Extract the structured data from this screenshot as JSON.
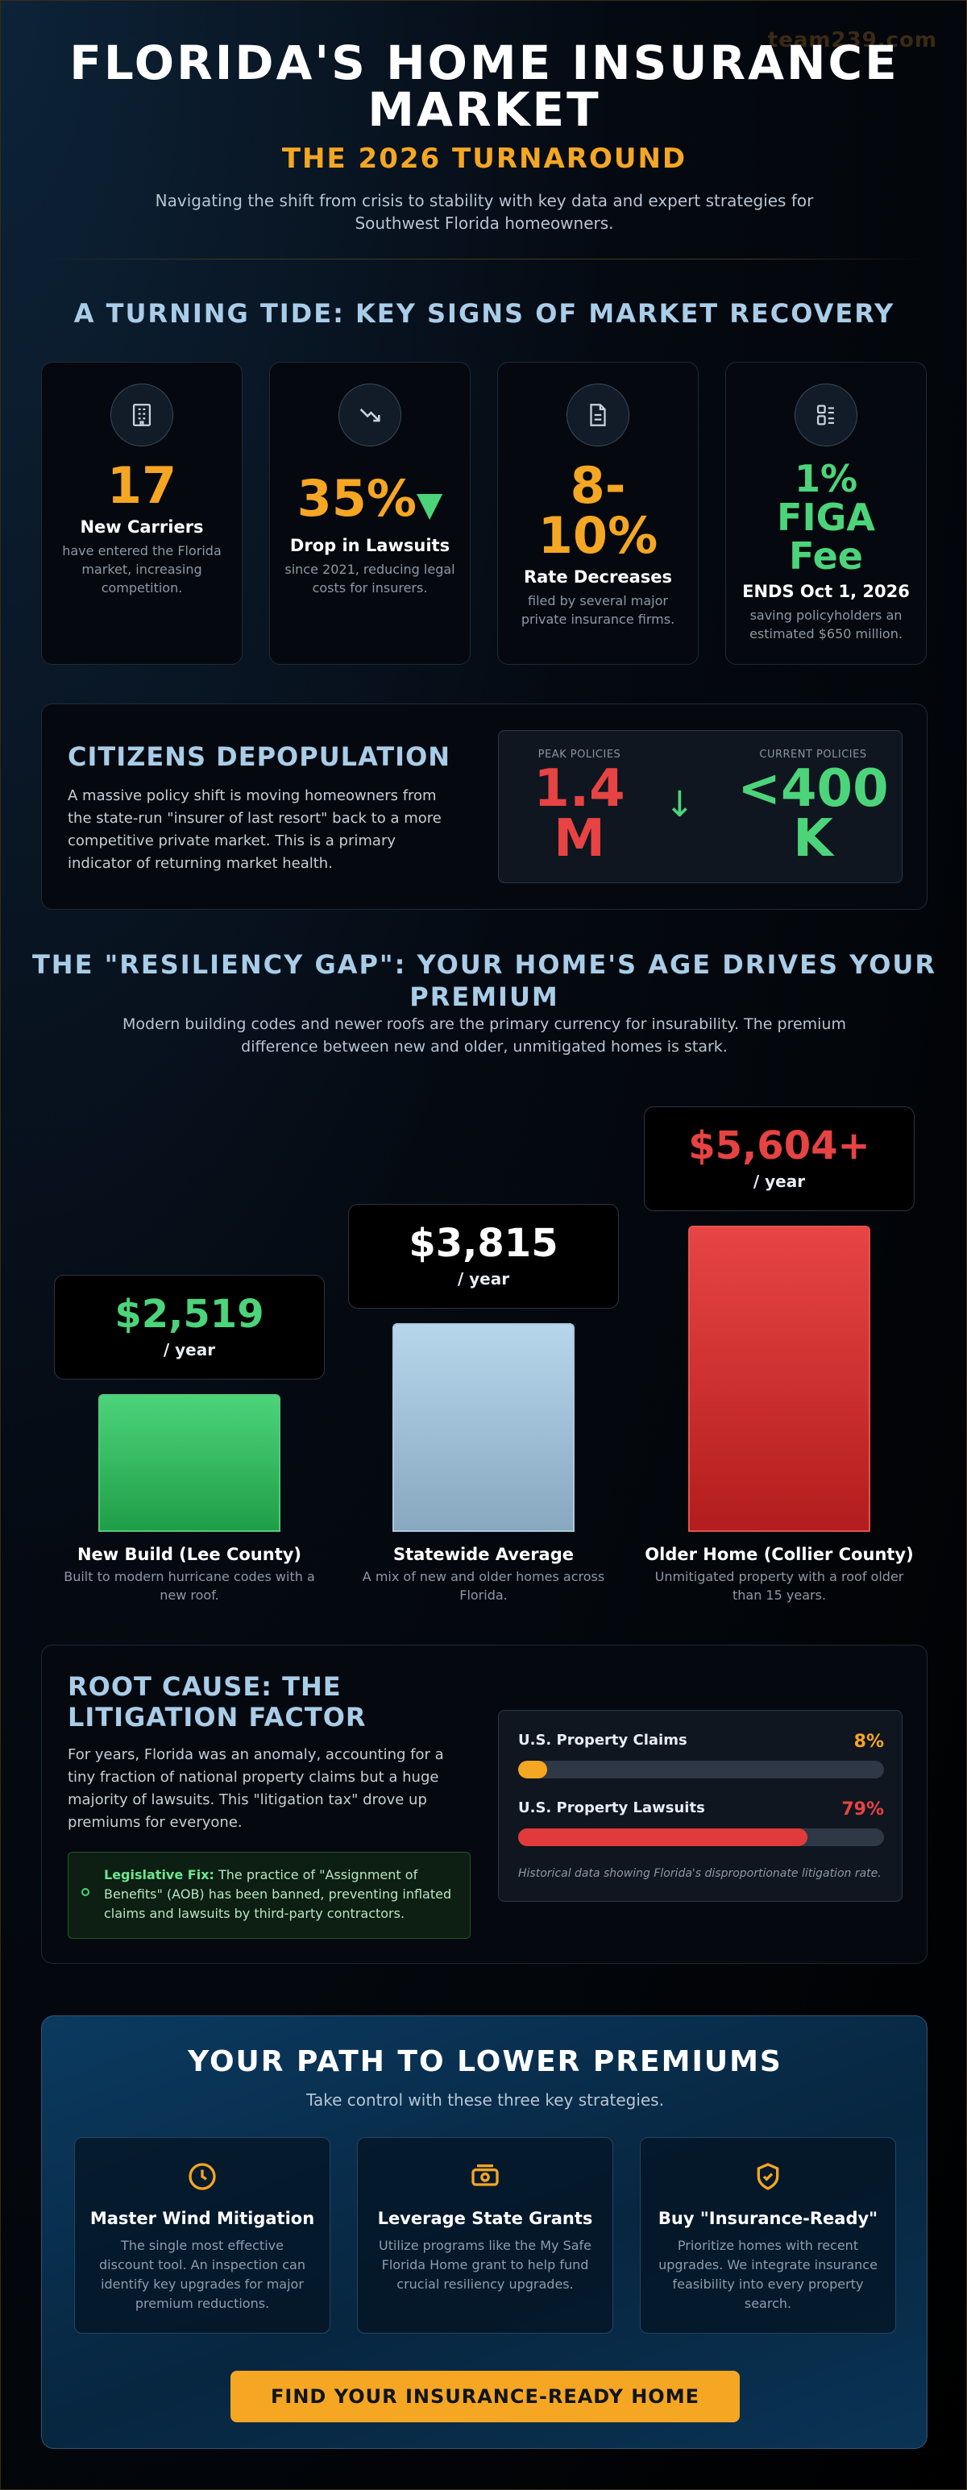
{
  "watermark": "team239.com",
  "header": {
    "title_line1": "FLORIDA'S HOME INSURANCE",
    "title_line2": "MARKET",
    "subtitle": "THE 2026 TURNAROUND",
    "intro": "Navigating the shift from crisis to stability with key data and expert strategies for Southwest Florida homeowners."
  },
  "recovery": {
    "heading": "A TURNING TIDE: KEY SIGNS OF MARKET RECOVERY",
    "stats": [
      {
        "icon": "building-icon",
        "value": "17",
        "label": "New Carriers",
        "desc": "have entered the Florida market, increasing competition."
      },
      {
        "icon": "trending-down-icon",
        "value": "35%",
        "value_suffix": "▼",
        "label": "Drop in Lawsuits",
        "desc": "since 2021, reducing legal costs for insurers."
      },
      {
        "icon": "document-icon",
        "value_line1": "8-",
        "value_line2": "10%",
        "label": "Rate Decreases",
        "desc": "filed by several major private insurance firms."
      },
      {
        "icon": "grid-icon",
        "value_line1": "1%",
        "value_line2": "FIGA",
        "value_line3": "Fee",
        "label": "ENDS Oct 1, 2026",
        "desc": "saving policyholders an estimated $650 million."
      }
    ]
  },
  "citizens": {
    "title": "CITIZENS DEPOPULATION",
    "text": "A massive policy shift is moving homeowners from the state-run \"insurer of last resort\" back to a more competitive private market. This is a primary indicator of returning market health.",
    "peak_label": "PEAK POLICIES",
    "peak_line1": "1.4",
    "peak_line2": "M",
    "current_label": "CURRENT POLICIES",
    "current_line1": "<400",
    "current_line2": "K",
    "arrow": "↓"
  },
  "resiliency": {
    "heading_line1": "THE \"RESILIENCY GAP\": YOUR HOME'S AGE DRIVES YOUR",
    "heading_line2": "PREMIUM",
    "intro": "Modern building codes and newer roofs are the primary currency for insurability. The premium difference between new and older, unmitigated homes is stark.",
    "unit": "/ year",
    "bars": [
      {
        "price": "$2,519",
        "value": 2519,
        "name": "New Build (Lee County)",
        "desc": "Built to modern hurricane codes with a new roof.",
        "color": "#4cd47a"
      },
      {
        "price": "$3,815",
        "value": 3815,
        "name": "Statewide Average",
        "desc": "A mix of new and older homes across Florida.",
        "color": "#ffffff"
      },
      {
        "price": "$5,604+",
        "value": 5604,
        "name": "Older Home (Collier County)",
        "desc": "Unmitigated property with a roof older than 15 years.",
        "color": "#e74343"
      }
    ]
  },
  "root_cause": {
    "title_line1": "ROOT CAUSE: THE",
    "title_line2": "LITIGATION FACTOR",
    "text": "For years, Florida was an anomaly, accounting for a tiny fraction of national property claims but a huge majority of lawsuits. This \"litigation tax\" drove up premiums for everyone.",
    "legis_label": "Legislative Fix:",
    "legis_text": " The practice of \"Assignment of Benefits\" (AOB) has been banned, preventing inflated claims and lawsuits by third-party contractors.",
    "meters": [
      {
        "name": "U.S. Property Claims",
        "pct_text": "8%",
        "pct": 8,
        "color": "#f5a623"
      },
      {
        "name": "U.S. Property Lawsuits",
        "pct_text": "79%",
        "pct": 79,
        "color": "#e23a3a"
      }
    ],
    "note": "Historical data showing Florida's disproportionate litigation rate."
  },
  "path": {
    "title": "YOUR PATH TO LOWER PREMIUMS",
    "subtitle": "Take control with these three key strategies.",
    "strategies": [
      {
        "icon": "clock-icon",
        "name": "Master Wind Mitigation",
        "desc": "The single most effective discount tool. An inspection can identify key upgrades for major premium reductions."
      },
      {
        "icon": "money-icon",
        "name": "Leverage State Grants",
        "desc": "Utilize programs like the My Safe Florida Home grant to help fund crucial resiliency upgrades."
      },
      {
        "icon": "shield-check-icon",
        "name": "Buy \"Insurance-Ready\"",
        "desc": "Prioritize homes with recent upgrades. We integrate insurance feasibility into every property search."
      }
    ],
    "cta": "FIND YOUR INSURANCE-READY HOME"
  },
  "colors": {
    "accent": "#f5a623",
    "green": "#4cd47a",
    "red": "#e74343",
    "heading": "#a9cde8"
  }
}
